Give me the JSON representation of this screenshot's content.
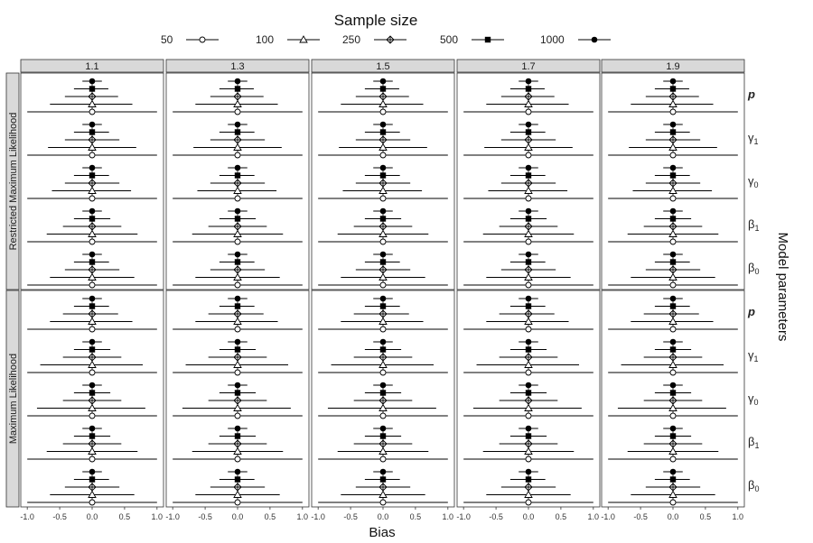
{
  "chart_data": {
    "type": "forest",
    "legend": {
      "title": "Sample size",
      "placement": "top",
      "entries": [
        {
          "label": "50",
          "shape": "circle-open"
        },
        {
          "label": "100",
          "shape": "triangle-open"
        },
        {
          "label": "250",
          "shape": "diamond-plus-open"
        },
        {
          "label": "500",
          "shape": "square-filled"
        },
        {
          "label": "1000",
          "shape": "circle-filled"
        }
      ]
    },
    "xlabel": "Bias",
    "ylabel_right": "Model parameters",
    "xlim": [
      -1.1,
      1.1
    ],
    "xticks": [
      -1.0,
      -0.5,
      0.0,
      0.5,
      1.0
    ],
    "xtick_labels": [
      "-1.0",
      "-0.5",
      "0.0",
      "0.5",
      "1.0"
    ],
    "columns": [
      "1.1",
      "1.3",
      "1.5",
      "1.7",
      "1.9"
    ],
    "rows": [
      "Restricted Maximum Likelihood",
      "Maximum Likelihood"
    ],
    "parameters": [
      {
        "name": "p",
        "base": "p",
        "sub": "",
        "italic": true
      },
      {
        "name": "γ1",
        "base": "γ",
        "sub": "1",
        "italic": false
      },
      {
        "name": "γ0",
        "base": "γ",
        "sub": "0",
        "italic": false
      },
      {
        "name": "β1",
        "base": "β",
        "sub": "1",
        "italic": false
      },
      {
        "name": "β0",
        "base": "β",
        "sub": "0",
        "italic": false
      }
    ],
    "sample_sizes": [
      "1000",
      "500",
      "250",
      "100",
      "50"
    ],
    "point_estimate": 0.0,
    "intervals_by_row": [
      {
        "row": "Restricted Maximum Likelihood",
        "p": {
          "1000": [
            -0.15,
            0.15
          ],
          "500": [
            -0.28,
            0.25
          ],
          "250": [
            -0.42,
            0.4
          ],
          "100": [
            -0.65,
            0.62
          ],
          "50": [
            -1.0,
            1.0
          ]
        },
        "γ1": {
          "1000": [
            -0.15,
            0.15
          ],
          "500": [
            -0.28,
            0.26
          ],
          "250": [
            -0.42,
            0.42
          ],
          "100": [
            -0.68,
            0.68
          ],
          "50": [
            -1.0,
            1.0
          ]
        },
        "γ0": {
          "1000": [
            -0.15,
            0.15
          ],
          "500": [
            -0.28,
            0.26
          ],
          "250": [
            -0.42,
            0.42
          ],
          "100": [
            -0.62,
            0.6
          ],
          "50": [
            -1.0,
            1.0
          ]
        },
        "β1": {
          "1000": [
            -0.15,
            0.15
          ],
          "500": [
            -0.28,
            0.28
          ],
          "250": [
            -0.45,
            0.45
          ],
          "100": [
            -0.7,
            0.7
          ],
          "50": [
            -1.0,
            1.0
          ]
        },
        "β0": {
          "1000": [
            -0.15,
            0.15
          ],
          "500": [
            -0.28,
            0.26
          ],
          "250": [
            -0.42,
            0.42
          ],
          "100": [
            -0.65,
            0.65
          ],
          "50": [
            -1.0,
            1.0
          ]
        }
      },
      {
        "row": "Maximum Likelihood",
        "p": {
          "1000": [
            -0.15,
            0.15
          ],
          "500": [
            -0.28,
            0.26
          ],
          "250": [
            -0.45,
            0.4
          ],
          "100": [
            -0.65,
            0.62
          ],
          "50": [
            -1.0,
            1.0
          ]
        },
        "γ1": {
          "1000": [
            -0.15,
            0.15
          ],
          "500": [
            -0.28,
            0.28
          ],
          "250": [
            -0.45,
            0.45
          ],
          "100": [
            -0.8,
            0.78
          ],
          "50": [
            -1.0,
            1.0
          ]
        },
        "γ0": {
          "1000": [
            -0.15,
            0.15
          ],
          "500": [
            -0.28,
            0.28
          ],
          "250": [
            -0.45,
            0.45
          ],
          "100": [
            -0.85,
            0.82
          ],
          "50": [
            -1.0,
            1.0
          ]
        },
        "β1": {
          "1000": [
            -0.15,
            0.15
          ],
          "500": [
            -0.28,
            0.28
          ],
          "250": [
            -0.45,
            0.45
          ],
          "100": [
            -0.7,
            0.7
          ],
          "50": [
            -1.0,
            1.0
          ]
        },
        "β0": {
          "1000": [
            -0.15,
            0.15
          ],
          "500": [
            -0.28,
            0.26
          ],
          "250": [
            -0.42,
            0.42
          ],
          "100": [
            -0.65,
            0.65
          ],
          "50": [
            -1.0,
            1.0
          ]
        }
      }
    ],
    "grid": false,
    "colors": {
      "strip_fill": "#d9d9d9",
      "panel_border": "#333333",
      "marks": "#000000"
    }
  }
}
